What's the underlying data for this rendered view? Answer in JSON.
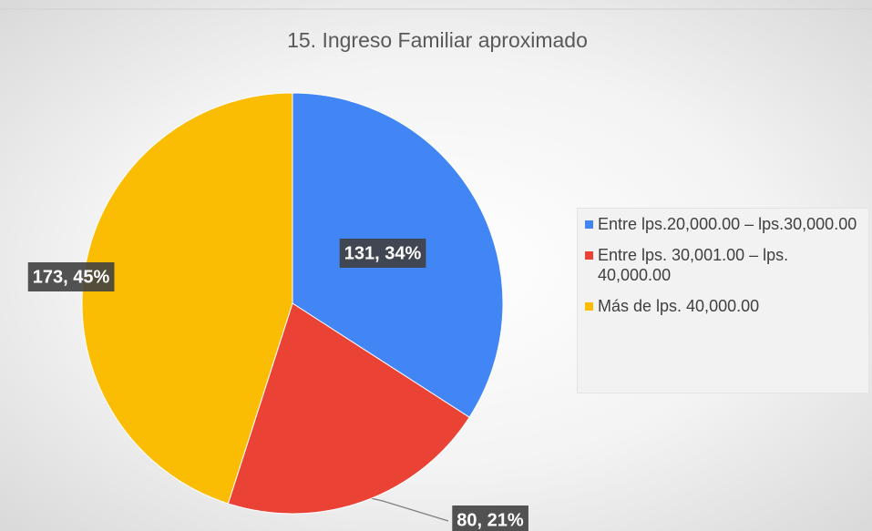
{
  "chart_data": {
    "type": "pie",
    "title": "15. Ingreso Familiar aproximado",
    "categories": [
      "Entre lps.20,000.00 – lps.30,000.00",
      "Entre lps. 30,001.00 – lps. 40,000.00",
      "Más de lps. 40,000.00"
    ],
    "values": [
      131,
      80,
      173
    ],
    "value_labels": [
      "131, 34%",
      "80, 21%",
      "173, 45%"
    ],
    "colors": [
      "#4285f4",
      "#ea4335",
      "#fbbc04"
    ],
    "legend": "right"
  }
}
